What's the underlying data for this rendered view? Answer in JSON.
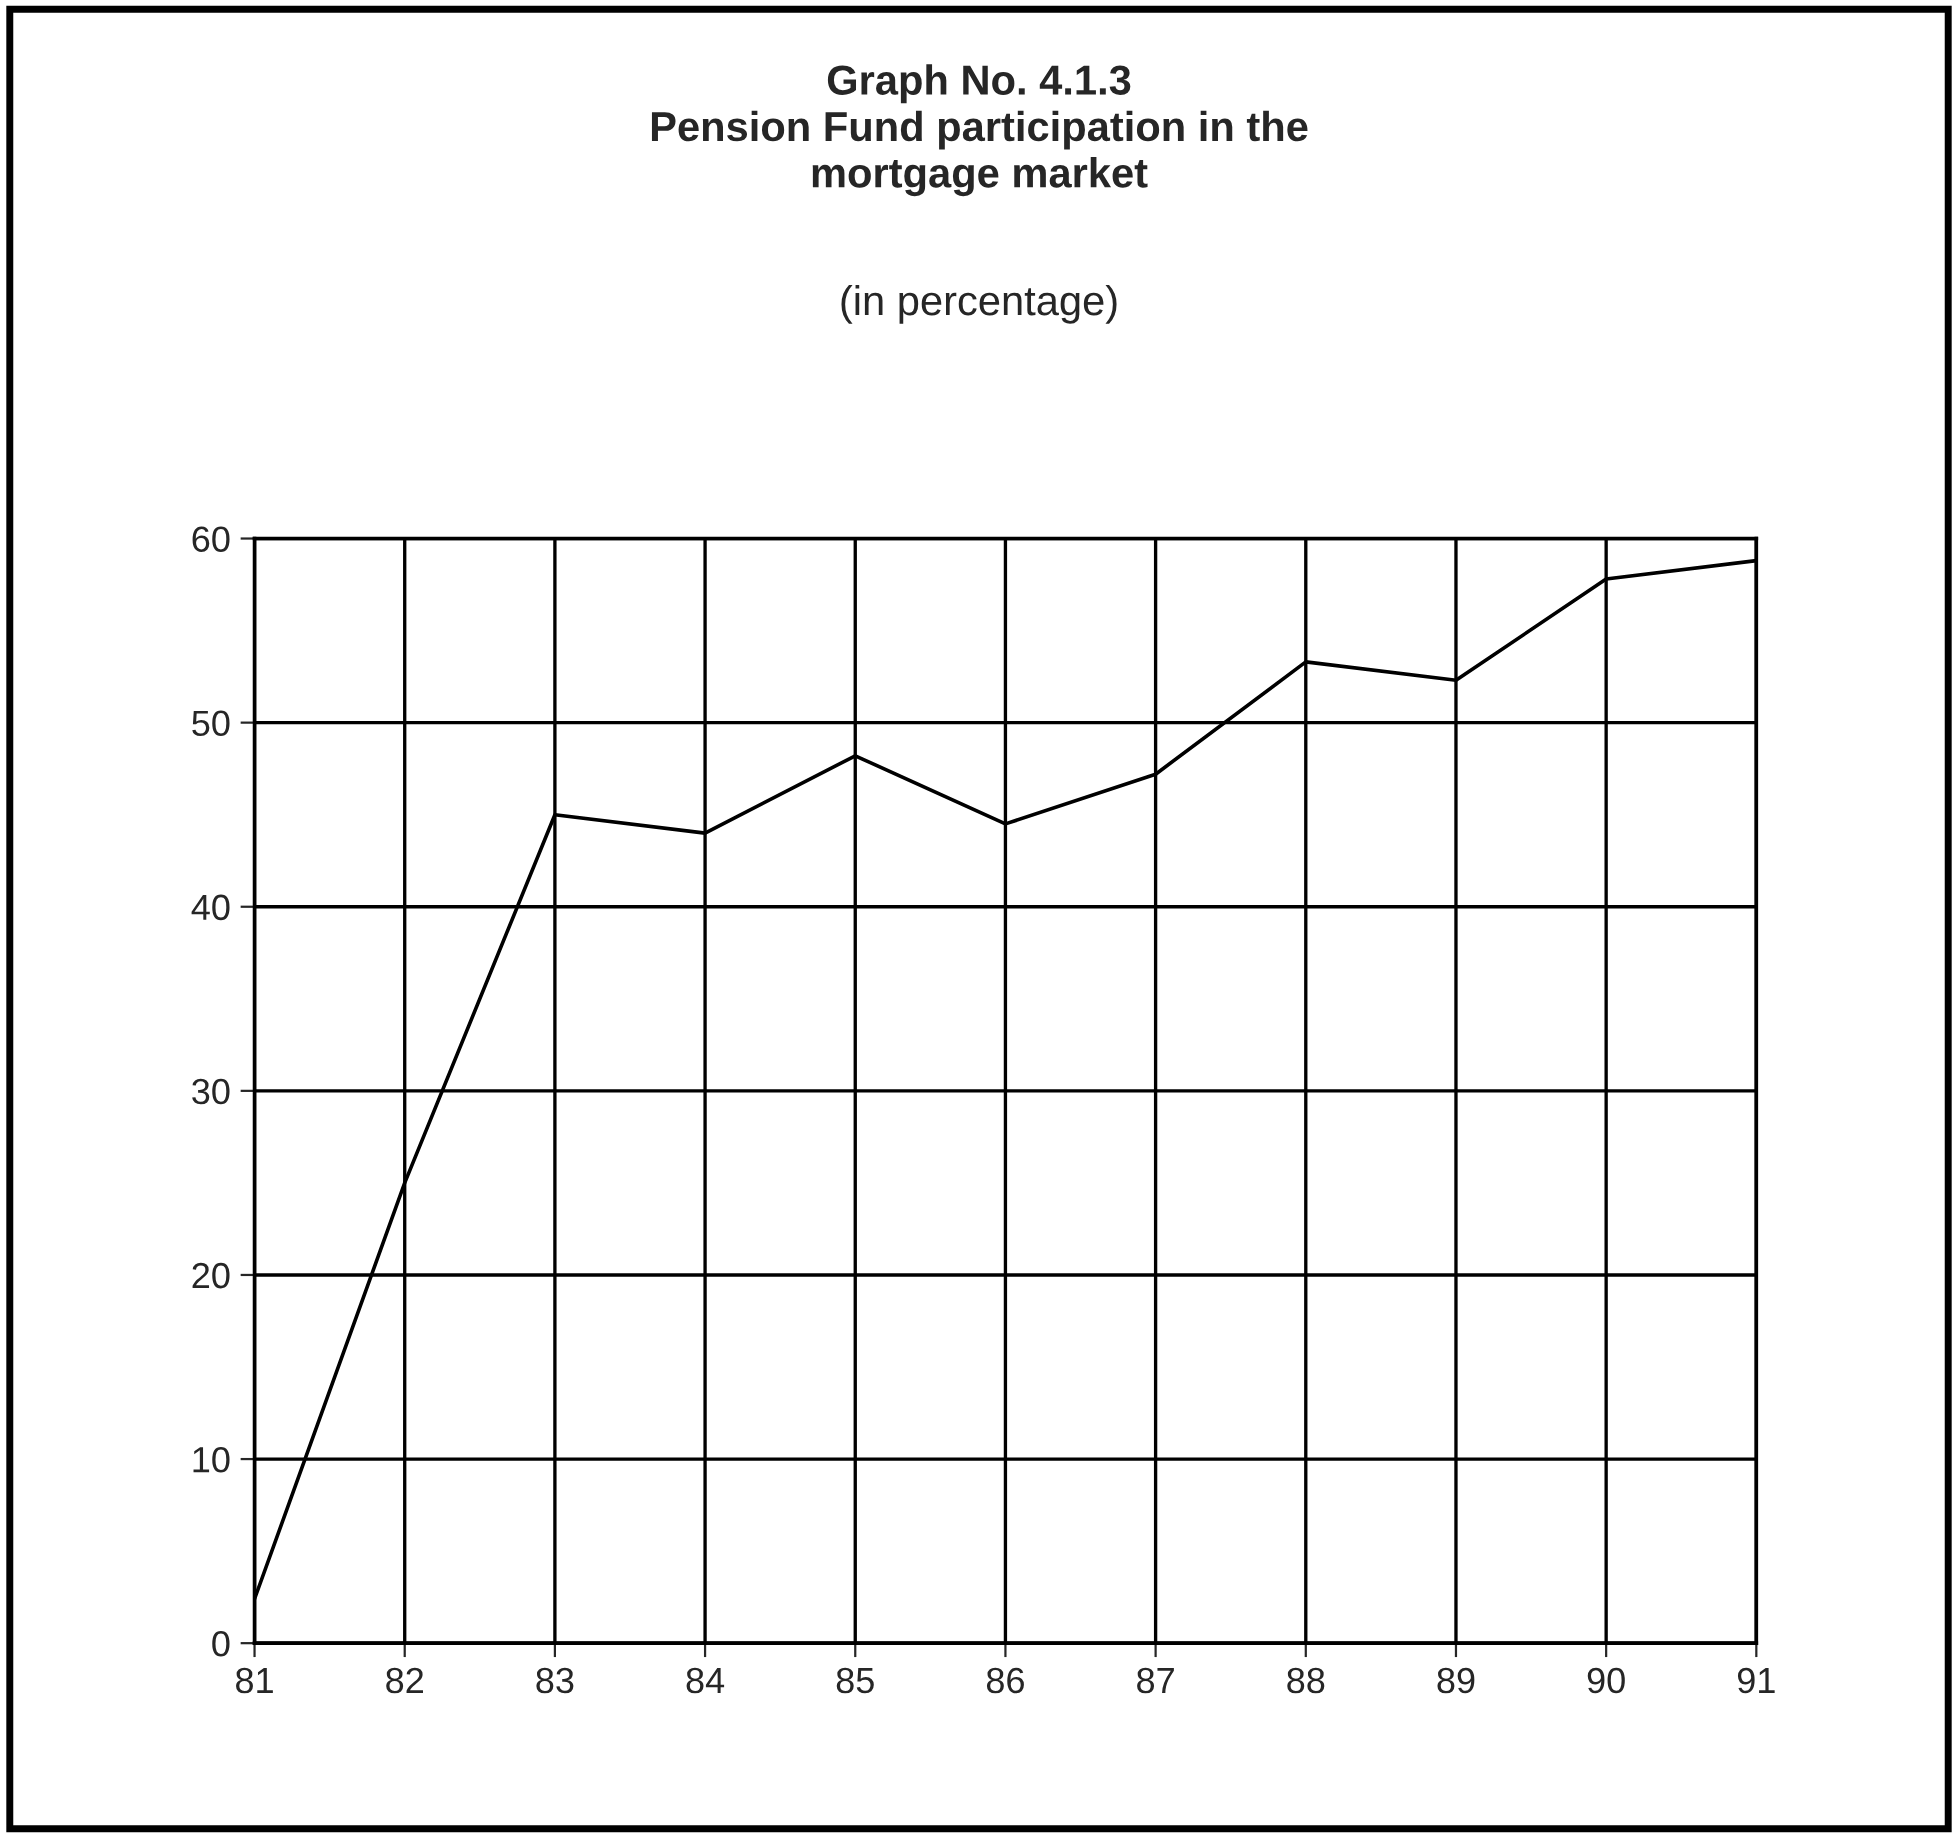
{
  "chart_data": {
    "type": "line",
    "title": "Graph No. 4.1.3\nPension Fund participation in the\nmortgage market",
    "subtitle": "(in percentage)",
    "categories": [
      "81",
      "82",
      "83",
      "84",
      "85",
      "86",
      "87",
      "88",
      "89",
      "90",
      "91"
    ],
    "series": [
      {
        "color": "#000000",
        "values": [
          2.4,
          25,
          45,
          44,
          48.2,
          44.5,
          47.2,
          53.3,
          52.3,
          57.8,
          58.8
        ]
      }
    ],
    "ylim": [
      0,
      60
    ],
    "yticks": [
      0,
      10,
      20,
      30,
      40,
      50,
      60
    ],
    "grid": true,
    "legend": false,
    "marker": "none",
    "line_style": "solid"
  }
}
